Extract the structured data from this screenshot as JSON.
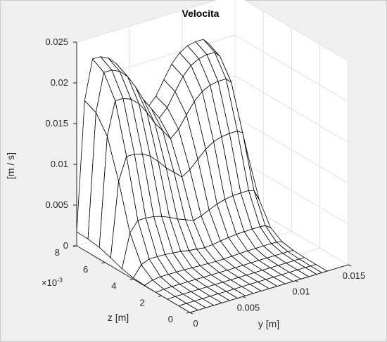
{
  "chart_data": {
    "type": "surface",
    "title": "Velocita",
    "xlabel": "y [m]",
    "ylabel": "z [m]",
    "zlabel": "[m / s]",
    "x_ticks": [
      "0",
      "0.005",
      "0.01",
      "0.015"
    ],
    "x_tick_values": [
      0,
      0.005,
      0.01,
      0.015
    ],
    "y_ticks": [
      "0",
      "2",
      "4",
      "6",
      "8"
    ],
    "y_tick_values": [
      0,
      0.002,
      0.004,
      0.006,
      0.008
    ],
    "y_exponent_label": "×10",
    "y_exponent_power": "-3",
    "z_ticks": [
      "0",
      "0.005",
      "0.01",
      "0.015",
      "0.02",
      "0.025"
    ],
    "z_tick_values": [
      0,
      0.005,
      0.01,
      0.015,
      0.02,
      0.025
    ],
    "xlim": [
      0,
      0.015
    ],
    "ylim": [
      0,
      0.008
    ],
    "zlim": [
      0,
      0.025
    ],
    "grid": true,
    "colormap": "white faces, black edges",
    "mesh_y": [
      0,
      0.00075,
      0.0015,
      0.00225,
      0.003,
      0.00375,
      0.0045,
      0.00525,
      0.006,
      0.00675,
      0.0075,
      0.00825,
      0.009,
      0.00975,
      0.0105,
      0.01125,
      0.012,
      0.0125,
      0.013
    ],
    "mesh_z": [
      0,
      0.0008,
      0.0016,
      0.0024,
      0.0032,
      0.004,
      0.0048,
      0.0056,
      0.0064,
      0.0072,
      0.008
    ],
    "velocity_peak_1": {
      "y": 0.0004,
      "z": 0.008,
      "value": 0.022
    },
    "velocity_peak_2": {
      "y": 0.0125,
      "z": 0.008,
      "value": 0.0195
    },
    "velocity_saddle": {
      "y": 0.0065,
      "z": 0.008,
      "value": 0.0155
    }
  },
  "colors": {
    "background": "#f0f0f0",
    "axes_face": "#ffffff",
    "grid": "#e1e1e1",
    "axis": "#262626",
    "edge": "#000000"
  }
}
